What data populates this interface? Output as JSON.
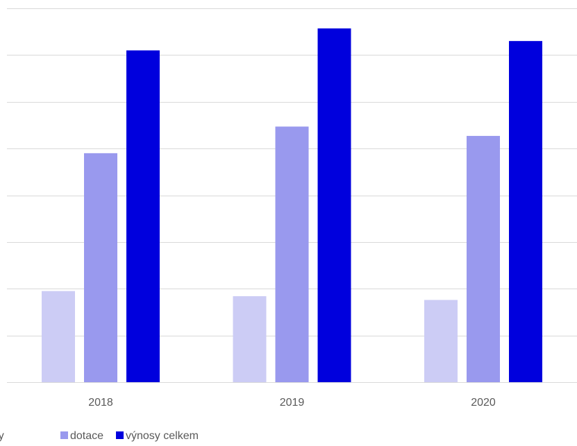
{
  "chart_data": {
    "type": "bar",
    "categories": [
      "2018",
      "2019",
      "2020"
    ],
    "series": [
      {
        "name": "výnosy",
        "color": "#ccccf5",
        "values": [
          19.5,
          18.4,
          17.6
        ]
      },
      {
        "name": "dotace",
        "color": "#9999ee",
        "values": [
          49,
          54.7,
          52.7
        ]
      },
      {
        "name": "výnosy celkem",
        "color": "#0000dd",
        "values": [
          71,
          75.7,
          73
        ]
      }
    ],
    "ylim": [
      0,
      80
    ],
    "y_gridlines": [
      0,
      10,
      20,
      30,
      40,
      50,
      60,
      70,
      80
    ],
    "grid": true,
    "legend_position": "bottom",
    "y_tick_labels_visible": false
  }
}
